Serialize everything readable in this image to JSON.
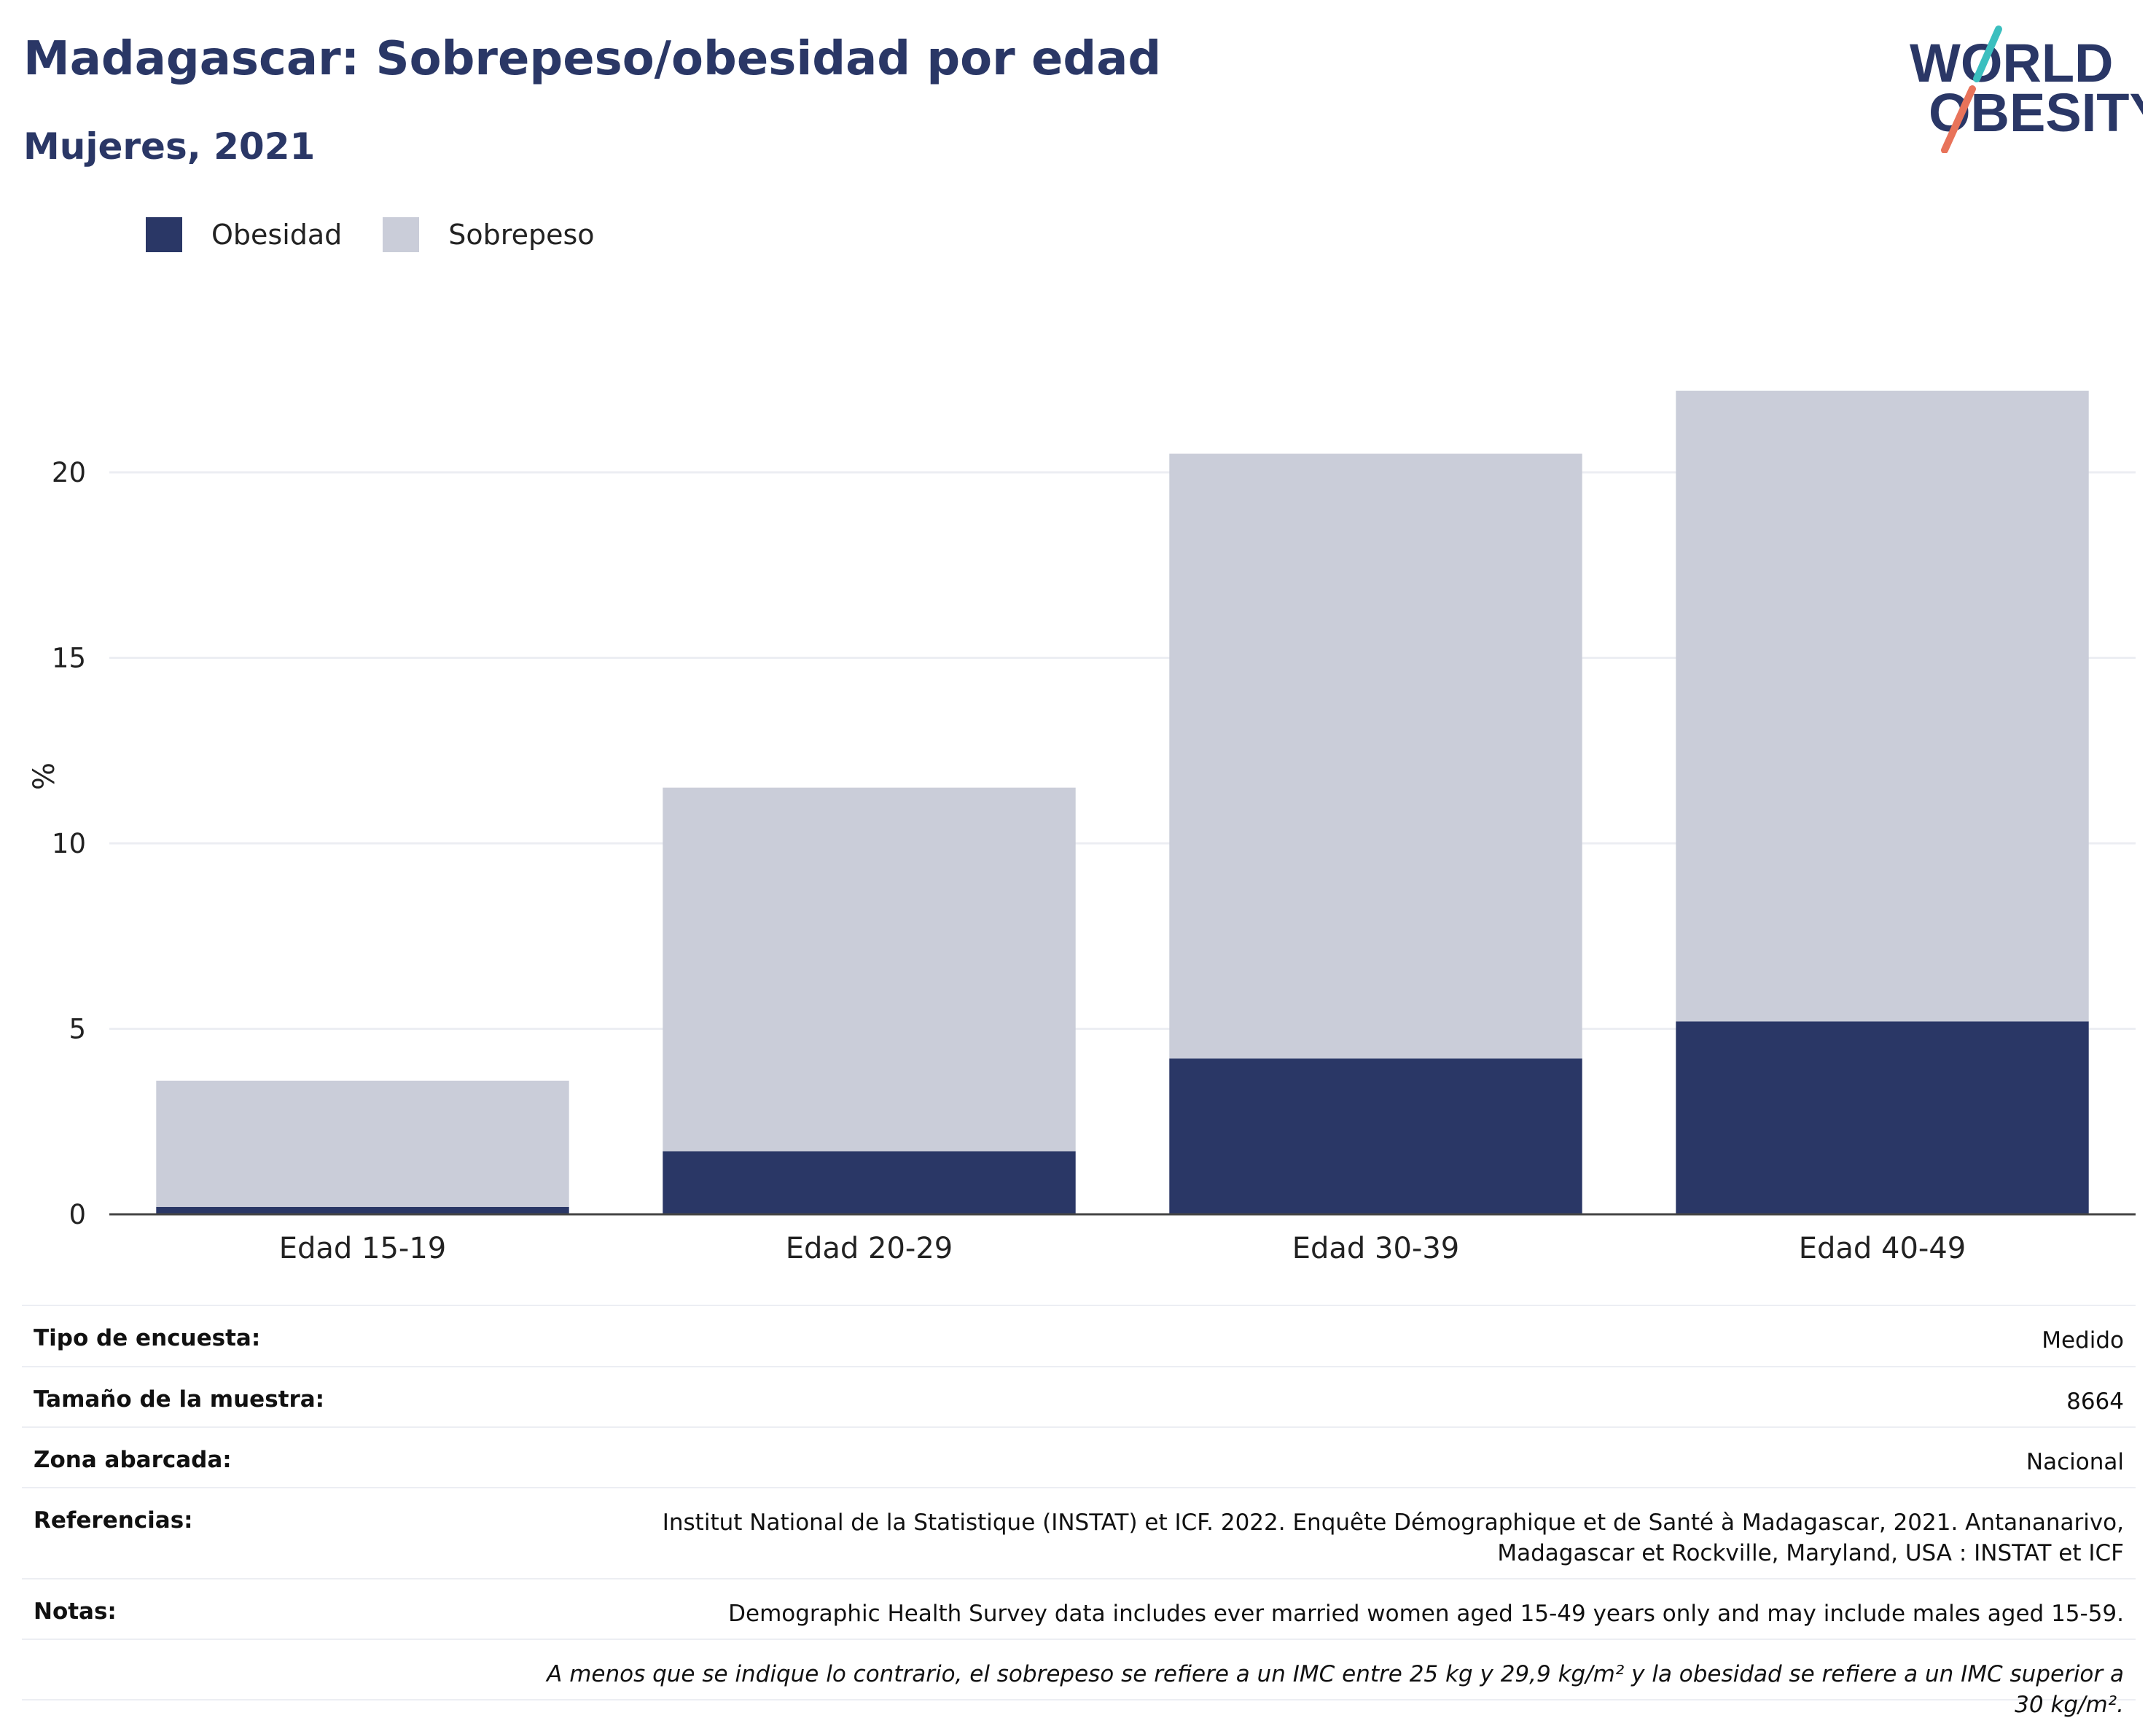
{
  "header": {
    "title": "Madagascar: Sobrepeso/obesidad por edad",
    "subtitle": "Mujeres, 2021"
  },
  "logo": {
    "line1": "WORLD",
    "line2": "OBESITY"
  },
  "colors": {
    "obesity": "#2a3766",
    "overweight": "#cacdd9",
    "title": "#2a3766",
    "grid": "#eceef3",
    "logo_teal": "#3bbfbf",
    "logo_coral": "#e8735a"
  },
  "legend": {
    "obesity_label": "Obesidad",
    "overweight_label": "Sobrepeso"
  },
  "chart_data": {
    "type": "bar",
    "stacked": true,
    "categories": [
      "Edad 15-19",
      "Edad 20-29",
      "Edad 30-39",
      "Edad 40-49"
    ],
    "series": [
      {
        "name": "Obesidad",
        "values": [
          0.2,
          1.7,
          4.2,
          5.2
        ]
      },
      {
        "name": "Sobrepeso",
        "values": [
          3.4,
          9.8,
          16.3,
          17.0
        ]
      }
    ],
    "ylabel": "%",
    "ylim": [
      0,
      23.3
    ],
    "yticks": [
      0,
      5,
      10,
      15,
      20
    ],
    "grid": true,
    "legend_position": "top-left"
  },
  "info": {
    "survey_type_label": "Tipo de encuesta:",
    "survey_type_value": "Medido",
    "sample_size_label": "Tamaño de la muestra:",
    "sample_size_value": "8664",
    "area_label": "Zona abarcada:",
    "area_value": "Nacional",
    "references_label": "Referencias:",
    "references_value": "Institut National de la Statistique (INSTAT) et ICF. 2022. Enquête Démographique et de Santé à Madagascar, 2021. Antananarivo, Madagascar et Rockville, Maryland, USA : INSTAT et ICF",
    "notes_label": "Notas:",
    "notes_value": "Demographic Health Survey data includes ever married women aged 15-49 years only and may include males aged 15-59.",
    "footnote": "A menos que se indique lo contrario, el sobrepeso se refiere a un IMC entre 25 kg y 29,9 kg/m² y la obesidad se refiere a un IMC superior a 30 kg/m²."
  }
}
